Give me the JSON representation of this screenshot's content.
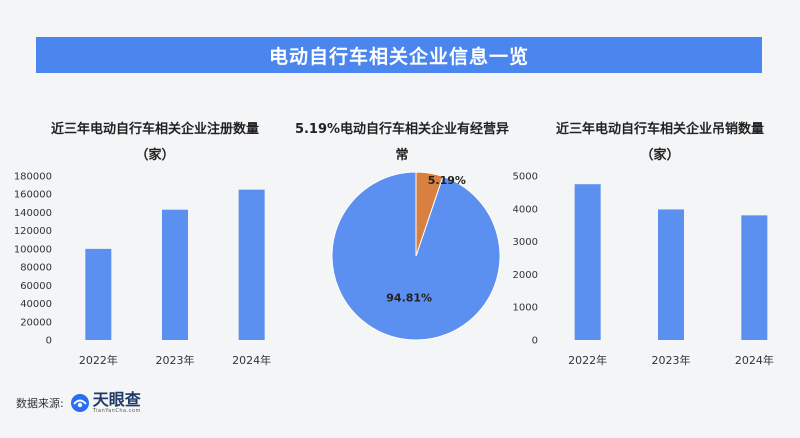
{
  "header": {
    "title": "电动自行车相关企业信息一览"
  },
  "colors": {
    "bar": "#5b8ff0",
    "pie_main": "#5b8ff0",
    "pie_minor": "#d8803f",
    "banner": "#4a86ee"
  },
  "chart_data": [
    {
      "type": "bar",
      "title": "近三年电动自行车相关企业注册数量\n（家）",
      "categories": [
        "2022年",
        "2023年",
        "2024年"
      ],
      "values": [
        100000,
        143000,
        165000
      ],
      "ylim": [
        0,
        180000
      ],
      "yticks": [
        "0",
        "20000",
        "40000",
        "60000",
        "80000",
        "100000",
        "120000",
        "140000",
        "160000",
        "180000"
      ],
      "xlabel": "",
      "ylabel": "",
      "grid": false
    },
    {
      "type": "pie",
      "title": "5.19%电动自行车相关企业有经营异\n常",
      "slices": [
        {
          "value": 94.81,
          "label": "94.81%",
          "color_key": "pie_main"
        },
        {
          "value": 5.19,
          "label": "5.19%",
          "color_key": "pie_minor"
        }
      ]
    },
    {
      "type": "bar",
      "title": "近三年电动自行车相关企业吊销数量\n（家）",
      "categories": [
        "2022年",
        "2023年",
        "2024年"
      ],
      "values": [
        4750,
        3980,
        3800
      ],
      "ylim": [
        0,
        5000
      ],
      "yticks": [
        "0",
        "1000",
        "2000",
        "3000",
        "4000",
        "5000"
      ],
      "xlabel": "",
      "ylabel": "",
      "grid": false
    }
  ],
  "footer": {
    "source_label": "数据来源:",
    "logo_name": "天眼查",
    "logo_sub": "TianYanCha.com"
  }
}
